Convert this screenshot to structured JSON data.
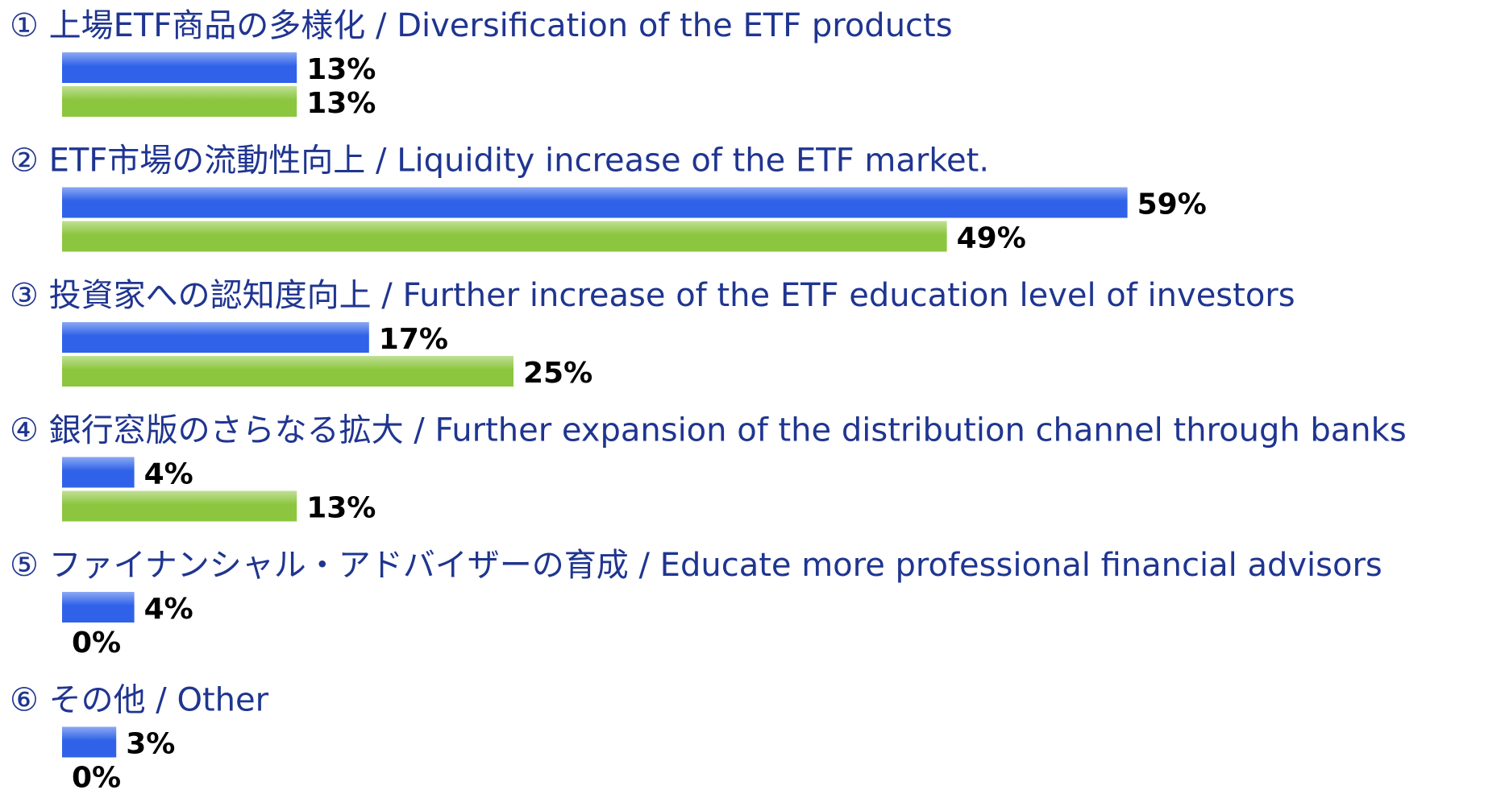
{
  "chart_data": {
    "type": "bar",
    "orientation": "horizontal",
    "categories": [
      "① 上場ETF商品の多様化 / Diversification of the ETF products",
      "② ETF市場の流動性向上 / Liquidity increase of the ETF market.",
      "③ 投資家への認知度向上 / Further increase of the ETF education level of investors",
      "④ 銀行窓版のさらなる拡大 / Further expansion of the distribution channel through banks",
      "⑤ ファイナンシャル・アドバイザーの育成 / Educate more professional financial advisors",
      "⑥ その他 / Other"
    ],
    "series": [
      {
        "color": "#2f62e8",
        "values": [
          13,
          59,
          17,
          4,
          4,
          3
        ],
        "value_labels": [
          "13%",
          "59%",
          "17%",
          "4%",
          "4%",
          "3%"
        ]
      },
      {
        "color": "#8cc63f",
        "values": [
          13,
          49,
          25,
          13,
          0,
          0
        ],
        "value_labels": [
          "13%",
          "49%",
          "25%",
          "13%",
          "0%",
          "0%"
        ]
      }
    ]
  }
}
